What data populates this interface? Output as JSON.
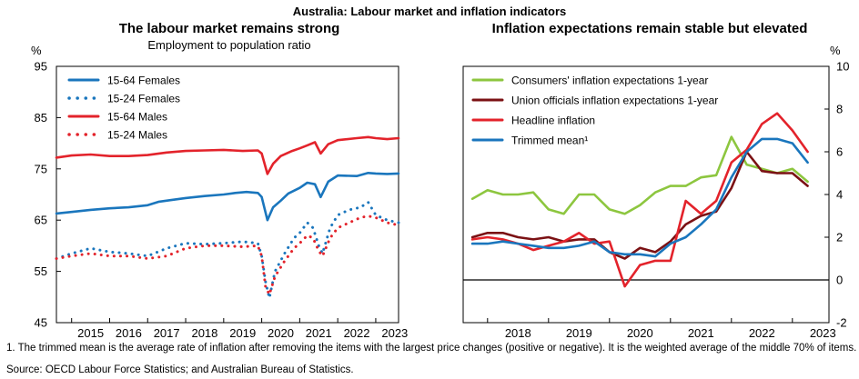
{
  "figure": {
    "title": "Australia: Labour market and inflation indicators",
    "footnote": "1. The trimmed mean is the average rate of inflation after removing the items with the largest price changes (positive or negative). It is the weighted average of the middle 70% of items.",
    "source": "Source: OECD Labour Force Statistics; and Australian Bureau of Statistics."
  },
  "chart_data": [
    {
      "type": "line",
      "title": "The labour market remains strong",
      "subtitle": "Employment to population ratio",
      "ylabel": "%",
      "ylim": [
        45,
        95
      ],
      "yticks": [
        45,
        55,
        65,
        75,
        85,
        95
      ],
      "xlim": [
        2014.6,
        2023.6
      ],
      "xticks": [
        "2015",
        "2016",
        "2017",
        "2018",
        "2019",
        "2020",
        "2021",
        "2022",
        "2023"
      ],
      "grid": false,
      "legend": "top-left",
      "series": [
        {
          "name": "15-64 Females",
          "color": "#1a76bd",
          "style": "solid",
          "x": [
            2014.6,
            2015.0,
            2015.5,
            2016.0,
            2016.5,
            2017.0,
            2017.3,
            2017.6,
            2018.0,
            2018.5,
            2019.0,
            2019.3,
            2019.6,
            2019.9,
            2020.0,
            2020.15,
            2020.3,
            2020.5,
            2020.7,
            2021.0,
            2021.2,
            2021.4,
            2021.55,
            2021.75,
            2022.0,
            2022.5,
            2022.8,
            2023.0,
            2023.3,
            2023.6
          ],
          "y": [
            66.3,
            66.6,
            67.0,
            67.3,
            67.5,
            67.9,
            68.6,
            68.9,
            69.3,
            69.7,
            70.0,
            70.3,
            70.5,
            70.3,
            69.5,
            65.0,
            67.5,
            68.8,
            70.2,
            71.3,
            72.3,
            72.0,
            69.5,
            72.5,
            73.7,
            73.6,
            74.2,
            74.1,
            74.0,
            74.1
          ]
        },
        {
          "name": "15-24 Females",
          "color": "#1a76bd",
          "style": "dotted",
          "x": [
            2014.6,
            2015.0,
            2015.5,
            2016.0,
            2016.5,
            2017.0,
            2017.5,
            2018.0,
            2018.5,
            2019.0,
            2019.5,
            2019.9,
            2020.0,
            2020.1,
            2020.2,
            2020.35,
            2020.6,
            2020.85,
            2021.0,
            2021.2,
            2021.35,
            2021.5,
            2021.6,
            2021.8,
            2022.0,
            2022.3,
            2022.6,
            2022.8,
            2023.0,
            2023.3,
            2023.6
          ],
          "y": [
            57.5,
            58.5,
            59.5,
            58.8,
            58.5,
            58.0,
            59.5,
            60.5,
            60.3,
            60.5,
            60.8,
            60.5,
            58.0,
            53.0,
            49.8,
            55.0,
            58.5,
            61.5,
            62.5,
            64.5,
            63.5,
            60.0,
            58.5,
            63.5,
            66.0,
            67.0,
            67.5,
            68.5,
            66.0,
            65.0,
            64.5
          ]
        },
        {
          "name": "15-64 Males",
          "color": "#e3232b",
          "style": "solid",
          "x": [
            2014.6,
            2015.0,
            2015.5,
            2016.0,
            2016.5,
            2017.0,
            2017.5,
            2018.0,
            2018.5,
            2019.0,
            2019.5,
            2019.9,
            2020.0,
            2020.15,
            2020.3,
            2020.5,
            2020.8,
            2021.0,
            2021.2,
            2021.4,
            2021.55,
            2021.75,
            2022.0,
            2022.5,
            2022.8,
            2023.0,
            2023.3,
            2023.6
          ],
          "y": [
            77.2,
            77.6,
            77.8,
            77.5,
            77.5,
            77.7,
            78.2,
            78.5,
            78.6,
            78.7,
            78.5,
            78.6,
            78.0,
            74.0,
            76.0,
            77.5,
            78.5,
            79.0,
            79.6,
            80.2,
            78.0,
            79.8,
            80.6,
            81.0,
            81.2,
            81.0,
            80.8,
            81.0
          ]
        },
        {
          "name": "15-24 Males",
          "color": "#e3232b",
          "style": "dotted",
          "x": [
            2014.6,
            2015.0,
            2015.5,
            2016.0,
            2016.5,
            2017.0,
            2017.5,
            2018.0,
            2018.5,
            2019.0,
            2019.5,
            2019.9,
            2020.0,
            2020.1,
            2020.2,
            2020.35,
            2020.6,
            2020.85,
            2021.0,
            2021.2,
            2021.35,
            2021.5,
            2021.6,
            2021.8,
            2022.0,
            2022.3,
            2022.6,
            2022.8,
            2023.0,
            2023.3,
            2023.6
          ],
          "y": [
            57.5,
            58.0,
            58.5,
            58.0,
            58.0,
            57.5,
            58.0,
            59.5,
            60.0,
            60.0,
            59.8,
            60.0,
            58.0,
            52.0,
            50.5,
            54.0,
            57.0,
            59.5,
            60.5,
            62.0,
            61.5,
            59.0,
            58.0,
            61.5,
            63.5,
            64.5,
            65.5,
            65.8,
            65.5,
            64.5,
            64.0
          ]
        }
      ]
    },
    {
      "type": "line",
      "title": "Inflation expectations remain stable but elevated",
      "ylabel": "%",
      "ylim": [
        -2,
        10
      ],
      "yticks": [
        -2,
        0,
        2,
        4,
        6,
        8,
        10
      ],
      "xlim": [
        2017.6,
        2023.6
      ],
      "xticks": [
        "2018",
        "2019",
        "2020",
        "2021",
        "2022",
        "2023"
      ],
      "grid": false,
      "reference_line": 0,
      "legend": "top-left",
      "series": [
        {
          "name": "Consumers' inflation expectations 1-year",
          "color": "#8dc63f",
          "x": [
            2017.75,
            2018.0,
            2018.25,
            2018.5,
            2018.75,
            2019.0,
            2019.25,
            2019.5,
            2019.75,
            2020.0,
            2020.25,
            2020.5,
            2020.75,
            2021.0,
            2021.25,
            2021.5,
            2021.75,
            2022.0,
            2022.25,
            2022.5,
            2022.75,
            2023.0,
            2023.25
          ],
          "y": [
            3.8,
            4.2,
            4.0,
            4.0,
            4.1,
            3.3,
            3.1,
            4.0,
            4.0,
            3.3,
            3.1,
            3.5,
            4.1,
            4.4,
            4.4,
            4.8,
            4.9,
            6.7,
            5.4,
            5.2,
            5.0,
            5.2,
            4.6
          ]
        },
        {
          "name": "Union officials inflation expectations 1-year",
          "color": "#7b1114",
          "x": [
            2017.75,
            2018.0,
            2018.25,
            2018.5,
            2018.75,
            2019.0,
            2019.25,
            2019.5,
            2019.75,
            2020.0,
            2020.25,
            2020.5,
            2020.75,
            2021.0,
            2021.25,
            2021.5,
            2021.75,
            2022.0,
            2022.25,
            2022.5,
            2022.75,
            2023.0,
            2023.25
          ],
          "y": [
            2.0,
            2.2,
            2.2,
            2.0,
            1.9,
            2.0,
            1.8,
            1.9,
            1.9,
            1.3,
            1.0,
            1.5,
            1.3,
            1.8,
            2.6,
            3.0,
            3.2,
            4.3,
            6.0,
            5.1,
            5.0,
            5.0,
            4.4
          ]
        },
        {
          "name": "Headline inflation",
          "color": "#e3232b",
          "x": [
            2017.75,
            2018.0,
            2018.25,
            2018.5,
            2018.75,
            2019.0,
            2019.25,
            2019.5,
            2019.75,
            2020.0,
            2020.25,
            2020.5,
            2020.75,
            2021.0,
            2021.25,
            2021.5,
            2021.75,
            2022.0,
            2022.25,
            2022.5,
            2022.75,
            2023.0,
            2023.25
          ],
          "y": [
            1.9,
            2.0,
            1.9,
            1.7,
            1.4,
            1.6,
            1.8,
            2.2,
            1.7,
            1.8,
            -0.3,
            0.7,
            0.9,
            0.9,
            3.7,
            3.1,
            3.7,
            5.5,
            6.1,
            7.3,
            7.8,
            7.0,
            6.0
          ]
        },
        {
          "name": "Trimmed mean¹",
          "color": "#1a76bd",
          "x": [
            2017.75,
            2018.0,
            2018.25,
            2018.5,
            2018.75,
            2019.0,
            2019.25,
            2019.5,
            2019.75,
            2020.0,
            2020.25,
            2020.5,
            2020.75,
            2021.0,
            2021.25,
            2021.5,
            2021.75,
            2022.0,
            2022.25,
            2022.5,
            2022.75,
            2023.0,
            2023.25
          ],
          "y": [
            1.7,
            1.7,
            1.8,
            1.7,
            1.6,
            1.5,
            1.5,
            1.6,
            1.8,
            1.3,
            1.2,
            1.2,
            1.1,
            1.7,
            2.0,
            2.6,
            3.3,
            4.8,
            6.0,
            6.6,
            6.6,
            6.4,
            5.5
          ]
        }
      ]
    }
  ]
}
